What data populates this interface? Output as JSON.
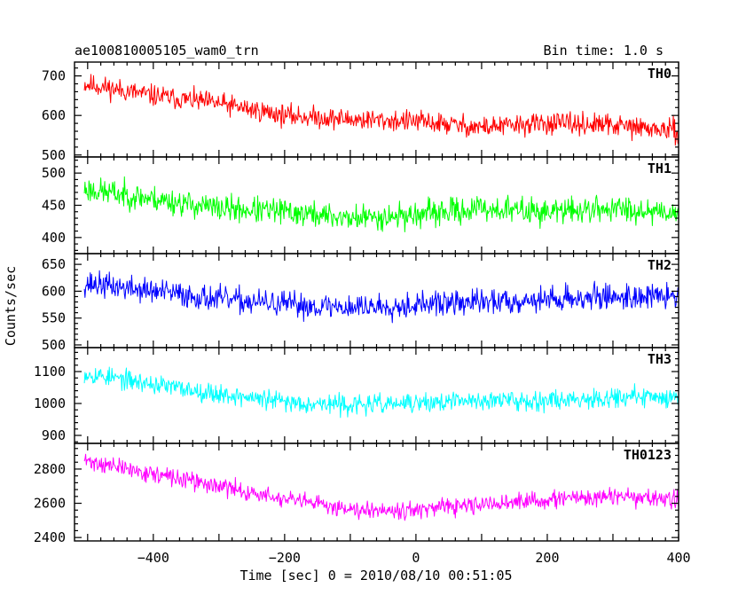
{
  "header": {
    "title": "ae100810005105_wam0_trn",
    "bin_time": "Bin time: 1.0 s"
  },
  "chart_data": {
    "type": "line",
    "xlabel": "Time [sec] 0 = 2010/08/10 00:51:05",
    "ylabel": "Counts/sec",
    "xlim": [
      -520,
      400
    ],
    "data_x_range": [
      -505,
      400
    ],
    "x_ticks": [
      -400,
      -200,
      0,
      200,
      400
    ],
    "x_tick_labels": [
      "−400",
      "−200",
      "0",
      "200",
      "400"
    ],
    "grid": false,
    "panels": [
      {
        "name": "TH0",
        "color": "#ff0000",
        "ylim": [
          495,
          735
        ],
        "y_ticks": [
          500,
          600,
          700
        ],
        "y_tick_labels": [
          "500",
          "600",
          "700"
        ],
        "trend": {
          "x": [
            -505,
            -400,
            -300,
            -200,
            -100,
            0,
            100,
            200,
            300,
            400
          ],
          "y": [
            680,
            650,
            630,
            600,
            590,
            585,
            570,
            580,
            575,
            560
          ]
        },
        "noise_amplitude": 40,
        "seed": 11
      },
      {
        "name": "TH1",
        "color": "#00ff00",
        "ylim": [
          375,
          525
        ],
        "y_ticks": [
          400,
          450,
          500
        ],
        "y_tick_labels": [
          "400",
          "450",
          "500"
        ],
        "trend": {
          "x": [
            -505,
            -400,
            -300,
            -200,
            -100,
            0,
            100,
            200,
            300,
            400
          ],
          "y": [
            475,
            460,
            445,
            440,
            430,
            435,
            445,
            440,
            445,
            440
          ]
        },
        "noise_amplitude": 30,
        "seed": 23
      },
      {
        "name": "TH2",
        "color": "#0000ff",
        "ylim": [
          495,
          670
        ],
        "y_ticks": [
          500,
          550,
          600,
          650
        ],
        "y_tick_labels": [
          "500",
          "550",
          "600",
          "650"
        ],
        "trend": {
          "x": [
            -505,
            -400,
            -300,
            -200,
            -100,
            0,
            100,
            200,
            300,
            400
          ],
          "y": [
            615,
            600,
            585,
            575,
            570,
            575,
            580,
            585,
            590,
            590
          ]
        },
        "noise_amplitude": 35,
        "seed": 37
      },
      {
        "name": "TH3",
        "color": "#00ffff",
        "ylim": [
          875,
          1175
        ],
        "y_ticks": [
          900,
          1000,
          1100
        ],
        "y_tick_labels": [
          "900",
          "1000",
          "1100"
        ],
        "trend": {
          "x": [
            -505,
            -400,
            -300,
            -200,
            -100,
            0,
            100,
            200,
            300,
            400
          ],
          "y": [
            1095,
            1060,
            1030,
            1005,
            995,
            1000,
            1010,
            1010,
            1020,
            1020
          ]
        },
        "noise_amplitude": 45,
        "seed": 53
      },
      {
        "name": "TH0123",
        "color": "#ff00ff",
        "ylim": [
          2380,
          2950
        ],
        "y_ticks": [
          2400,
          2600,
          2800
        ],
        "y_tick_labels": [
          "2400",
          "2600",
          "2800"
        ],
        "trend": {
          "x": [
            -505,
            -400,
            -300,
            -200,
            -100,
            0,
            100,
            200,
            300,
            400
          ],
          "y": [
            2850,
            2770,
            2700,
            2620,
            2570,
            2560,
            2590,
            2620,
            2640,
            2620
          ]
        },
        "noise_amplitude": 75,
        "seed": 71
      }
    ]
  }
}
